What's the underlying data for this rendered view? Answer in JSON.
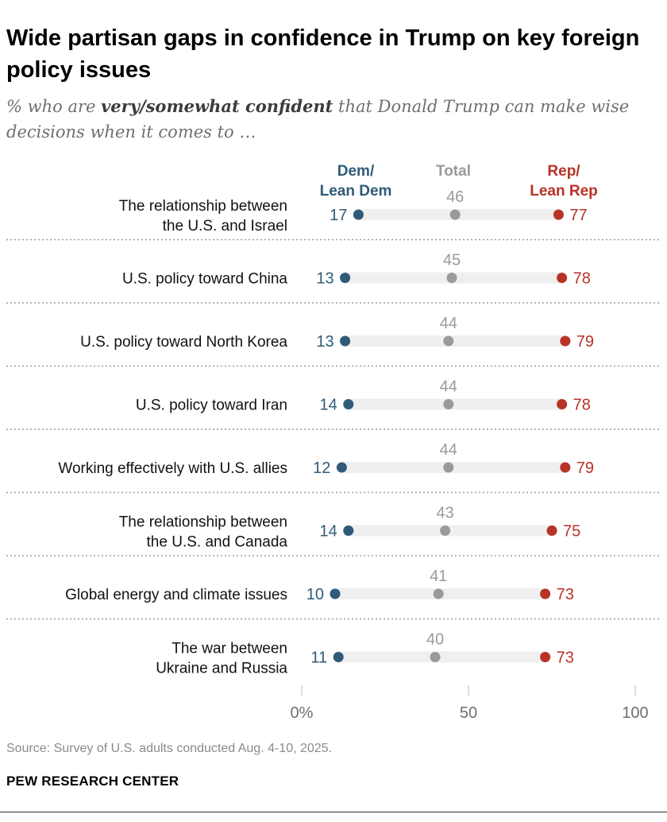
{
  "title": "Wide partisan gaps in confidence in Trump on key foreign policy issues",
  "subtitle": {
    "pre": "% who are ",
    "emph": "very/somewhat confident",
    "post": " that Donald Trump can make wise decisions when it comes to …"
  },
  "legend": {
    "dem_line1": "Dem/",
    "dem_line2": "Lean Dem",
    "total": "Total",
    "rep_line1": "Rep/",
    "rep_line2": "Lean Rep"
  },
  "source": "Source: Survey of U.S. adults conducted Aug. 4-10, 2025.",
  "brand": "PEW RESEARCH CENTER",
  "colors": {
    "dem": "#2f5b78",
    "total": "#9a9a9a",
    "rep": "#b83228",
    "track": "#efefef",
    "divider": "#9a9a9a"
  },
  "chart_data": {
    "type": "dot",
    "xlim": [
      0,
      100
    ],
    "xticks": [
      "0%",
      "50",
      "100"
    ],
    "xtick_values": [
      0,
      50,
      100
    ],
    "series_names": [
      "Dem/Lean Dem",
      "Total",
      "Rep/Lean Rep"
    ],
    "categories": [
      {
        "label": [
          "The relationship between",
          "the U.S. and Israel"
        ],
        "dem": 17,
        "total": 46,
        "rep": 77
      },
      {
        "label": [
          "U.S. policy toward China"
        ],
        "dem": 13,
        "total": 45,
        "rep": 78
      },
      {
        "label": [
          "U.S. policy toward North Korea"
        ],
        "dem": 13,
        "total": 44,
        "rep": 79
      },
      {
        "label": [
          "U.S. policy toward Iran"
        ],
        "dem": 14,
        "total": 44,
        "rep": 78
      },
      {
        "label": [
          "Working effectively with U.S. allies"
        ],
        "dem": 12,
        "total": 44,
        "rep": 79
      },
      {
        "label": [
          "The relationship between",
          "the U.S. and Canada"
        ],
        "dem": 14,
        "total": 43,
        "rep": 75
      },
      {
        "label": [
          "Global energy and climate issues"
        ],
        "dem": 10,
        "total": 41,
        "rep": 73
      },
      {
        "label": [
          "The war between",
          "Ukraine and Russia"
        ],
        "dem": 11,
        "total": 40,
        "rep": 73
      }
    ]
  }
}
